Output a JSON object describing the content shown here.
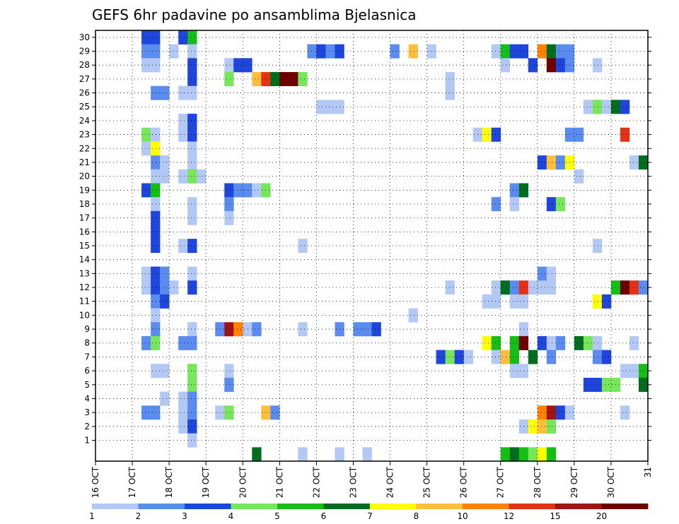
{
  "chart_data": {
    "type": "heatmap",
    "title": "GEFS 6hr padavine po ansamblima Bjelasnica",
    "xlabel": "",
    "ylabel": "",
    "x_ticks": [
      "16 OCT",
      "17 OCT",
      "18 OCT",
      "19 OCT",
      "20 OCT",
      "21 OCT",
      "22 OCT",
      "23 OCT",
      "24 OCT",
      "25 OCT",
      "26 OCT",
      "27 OCT",
      "28 OCT",
      "29 OCT",
      "30 OCT",
      "31"
    ],
    "x_range_days": [
      16,
      31
    ],
    "time_step_hours": 6,
    "y_ticks": [
      1,
      2,
      3,
      4,
      5,
      6,
      7,
      8,
      9,
      10,
      11,
      12,
      13,
      14,
      15,
      16,
      17,
      18,
      19,
      20,
      21,
      22,
      23,
      24,
      25,
      26,
      27,
      28,
      29,
      30
    ],
    "y_range": [
      0,
      30
    ],
    "grid": "dotted",
    "colorbar": {
      "labels": [
        "1",
        "2",
        "3",
        "4",
        "5",
        "6",
        "7",
        "8",
        "10",
        "12",
        "15",
        "20"
      ],
      "colors": [
        "#b4c8f5",
        "#5a8cf0",
        "#1e46dc",
        "#78e65a",
        "#14be14",
        "#006e1e",
        "#ffff00",
        "#ffbe3c",
        "#ff8200",
        "#e63214",
        "#a01414",
        "#6e0000"
      ]
    },
    "cells_note": "Each cell: [start day (day-of-month, quarter-day steps), member, color class 1-12]",
    "cells": [
      [
        17.25,
        30,
        3
      ],
      [
        17.5,
        30,
        3
      ],
      [
        18.25,
        30,
        3
      ],
      [
        18.5,
        30,
        5
      ],
      [
        17.25,
        29,
        2
      ],
      [
        17.5,
        29,
        2
      ],
      [
        18.0,
        29,
        1
      ],
      [
        18.5,
        29,
        1
      ],
      [
        21.75,
        29,
        2
      ],
      [
        22.0,
        29,
        3
      ],
      [
        22.25,
        29,
        2
      ],
      [
        22.5,
        29,
        3
      ],
      [
        24.0,
        29,
        2
      ],
      [
        24.5,
        29,
        8
      ],
      [
        25.0,
        29,
        1
      ],
      [
        26.75,
        29,
        1
      ],
      [
        27.0,
        29,
        5
      ],
      [
        27.25,
        29,
        3
      ],
      [
        27.5,
        29,
        3
      ],
      [
        28.0,
        29,
        9
      ],
      [
        28.25,
        29,
        6
      ],
      [
        28.5,
        29,
        2
      ],
      [
        28.75,
        29,
        2
      ],
      [
        17.25,
        28,
        1
      ],
      [
        17.5,
        28,
        1
      ],
      [
        18.5,
        28,
        3
      ],
      [
        19.5,
        28,
        1
      ],
      [
        19.75,
        28,
        3
      ],
      [
        20.0,
        28,
        3
      ],
      [
        27.0,
        28,
        1
      ],
      [
        27.75,
        28,
        3
      ],
      [
        28.25,
        28,
        12
      ],
      [
        28.5,
        28,
        3
      ],
      [
        28.75,
        28,
        2
      ],
      [
        29.5,
        28,
        1
      ],
      [
        18.5,
        27,
        3
      ],
      [
        19.5,
        27,
        4
      ],
      [
        20.25,
        27,
        8
      ],
      [
        20.5,
        27,
        10
      ],
      [
        20.75,
        27,
        6
      ],
      [
        21.0,
        27,
        12
      ],
      [
        21.25,
        27,
        12
      ],
      [
        21.5,
        27,
        4
      ],
      [
        25.5,
        27,
        1
      ],
      [
        17.5,
        26,
        2
      ],
      [
        17.75,
        26,
        2
      ],
      [
        18.25,
        26,
        1
      ],
      [
        18.5,
        26,
        1
      ],
      [
        25.5,
        26,
        1
      ],
      [
        22.0,
        25,
        1
      ],
      [
        22.25,
        25,
        1
      ],
      [
        22.5,
        25,
        1
      ],
      [
        29.25,
        25,
        1
      ],
      [
        29.5,
        25,
        4
      ],
      [
        29.75,
        25,
        1
      ],
      [
        30.0,
        25,
        6
      ],
      [
        30.25,
        25,
        3
      ],
      [
        18.25,
        24,
        1
      ],
      [
        18.5,
        24,
        3
      ],
      [
        17.25,
        23,
        4
      ],
      [
        17.5,
        23,
        1
      ],
      [
        18.25,
        23,
        1
      ],
      [
        18.5,
        23,
        3
      ],
      [
        26.25,
        23,
        1
      ],
      [
        26.5,
        23,
        7
      ],
      [
        26.75,
        23,
        3
      ],
      [
        28.75,
        23,
        2
      ],
      [
        29.0,
        23,
        2
      ],
      [
        30.25,
        23,
        10
      ],
      [
        17.25,
        22,
        1
      ],
      [
        17.5,
        22,
        7
      ],
      [
        18.5,
        22,
        1
      ],
      [
        17.5,
        21,
        2
      ],
      [
        17.75,
        21,
        1
      ],
      [
        18.5,
        21,
        1
      ],
      [
        28.0,
        21,
        3
      ],
      [
        28.25,
        21,
        8
      ],
      [
        28.5,
        21,
        2
      ],
      [
        28.75,
        21,
        7
      ],
      [
        30.5,
        21,
        1
      ],
      [
        30.75,
        21,
        6
      ],
      [
        17.5,
        20,
        1
      ],
      [
        17.75,
        20,
        1
      ],
      [
        18.25,
        20,
        1
      ],
      [
        18.5,
        20,
        4
      ],
      [
        18.75,
        20,
        1
      ],
      [
        29.0,
        20,
        1
      ],
      [
        17.25,
        19,
        3
      ],
      [
        17.5,
        19,
        5
      ],
      [
        19.5,
        19,
        3
      ],
      [
        19.75,
        19,
        2
      ],
      [
        20.0,
        19,
        2
      ],
      [
        20.25,
        19,
        1
      ],
      [
        20.5,
        19,
        4
      ],
      [
        27.25,
        19,
        2
      ],
      [
        27.5,
        19,
        6
      ],
      [
        17.5,
        18,
        1
      ],
      [
        18.5,
        18,
        1
      ],
      [
        19.5,
        18,
        2
      ],
      [
        26.75,
        18,
        2
      ],
      [
        27.25,
        18,
        1
      ],
      [
        28.25,
        18,
        3
      ],
      [
        28.5,
        18,
        4
      ],
      [
        17.5,
        17,
        3
      ],
      [
        18.5,
        17,
        1
      ],
      [
        19.5,
        17,
        1
      ],
      [
        17.5,
        16,
        3
      ],
      [
        17.5,
        15,
        3
      ],
      [
        18.25,
        15,
        1
      ],
      [
        18.5,
        15,
        3
      ],
      [
        21.5,
        15,
        1
      ],
      [
        29.5,
        15,
        1
      ],
      [
        17.25,
        13,
        1
      ],
      [
        17.5,
        13,
        3
      ],
      [
        17.75,
        13,
        2
      ],
      [
        18.5,
        13,
        1
      ],
      [
        28.0,
        13,
        2
      ],
      [
        28.25,
        13,
        1
      ],
      [
        17.25,
        12,
        1
      ],
      [
        17.5,
        12,
        3
      ],
      [
        17.75,
        12,
        2
      ],
      [
        18.0,
        12,
        1
      ],
      [
        18.5,
        12,
        3
      ],
      [
        25.5,
        12,
        1
      ],
      [
        26.75,
        12,
        1
      ],
      [
        27.0,
        12,
        6
      ],
      [
        27.25,
        12,
        2
      ],
      [
        27.5,
        12,
        10
      ],
      [
        27.75,
        12,
        1
      ],
      [
        28.0,
        12,
        1
      ],
      [
        28.25,
        12,
        1
      ],
      [
        30.0,
        12,
        5
      ],
      [
        30.25,
        12,
        12
      ],
      [
        30.5,
        12,
        10
      ],
      [
        30.75,
        12,
        2
      ],
      [
        17.5,
        11,
        2
      ],
      [
        17.75,
        11,
        3
      ],
      [
        26.5,
        11,
        1
      ],
      [
        26.75,
        11,
        1
      ],
      [
        27.25,
        11,
        1
      ],
      [
        27.5,
        11,
        1
      ],
      [
        29.5,
        11,
        7
      ],
      [
        29.75,
        11,
        3
      ],
      [
        17.5,
        10,
        1
      ],
      [
        24.5,
        10,
        1
      ],
      [
        17.5,
        9,
        2
      ],
      [
        18.5,
        9,
        1
      ],
      [
        19.25,
        9,
        2
      ],
      [
        19.5,
        9,
        11
      ],
      [
        19.75,
        9,
        9
      ],
      [
        20.0,
        9,
        1
      ],
      [
        20.25,
        9,
        2
      ],
      [
        21.5,
        9,
        1
      ],
      [
        22.5,
        9,
        2
      ],
      [
        23.0,
        9,
        2
      ],
      [
        23.25,
        9,
        2
      ],
      [
        23.5,
        9,
        3
      ],
      [
        27.5,
        9,
        1
      ],
      [
        17.25,
        8,
        2
      ],
      [
        17.5,
        8,
        4
      ],
      [
        18.25,
        8,
        2
      ],
      [
        18.5,
        8,
        2
      ],
      [
        26.5,
        8,
        7
      ],
      [
        26.75,
        8,
        5
      ],
      [
        27.25,
        8,
        5
      ],
      [
        27.5,
        8,
        12
      ],
      [
        28.0,
        8,
        3
      ],
      [
        28.25,
        8,
        1
      ],
      [
        28.5,
        8,
        2
      ],
      [
        29.0,
        8,
        6
      ],
      [
        29.25,
        8,
        4
      ],
      [
        29.5,
        8,
        1
      ],
      [
        30.5,
        8,
        1
      ],
      [
        25.25,
        7,
        3
      ],
      [
        25.5,
        7,
        4
      ],
      [
        25.75,
        7,
        3
      ],
      [
        26.0,
        7,
        1
      ],
      [
        26.75,
        7,
        1
      ],
      [
        27.0,
        7,
        8
      ],
      [
        27.25,
        7,
        5
      ],
      [
        27.75,
        7,
        6
      ],
      [
        28.25,
        7,
        2
      ],
      [
        29.5,
        7,
        2
      ],
      [
        29.75,
        7,
        3
      ],
      [
        17.5,
        6,
        1
      ],
      [
        17.75,
        6,
        1
      ],
      [
        18.5,
        6,
        4
      ],
      [
        19.5,
        6,
        1
      ],
      [
        27.25,
        6,
        1
      ],
      [
        27.5,
        6,
        1
      ],
      [
        30.25,
        6,
        1
      ],
      [
        30.5,
        6,
        1
      ],
      [
        30.75,
        6,
        5
      ],
      [
        18.5,
        5,
        4
      ],
      [
        19.5,
        5,
        2
      ],
      [
        29.25,
        5,
        3
      ],
      [
        29.5,
        5,
        3
      ],
      [
        29.75,
        5,
        4
      ],
      [
        30.0,
        5,
        4
      ],
      [
        30.75,
        5,
        6
      ],
      [
        17.75,
        4,
        1
      ],
      [
        18.25,
        4,
        1
      ],
      [
        18.5,
        4,
        2
      ],
      [
        17.25,
        3,
        2
      ],
      [
        17.5,
        3,
        2
      ],
      [
        18.25,
        3,
        1
      ],
      [
        18.5,
        3,
        2
      ],
      [
        19.25,
        3,
        1
      ],
      [
        19.5,
        3,
        4
      ],
      [
        20.5,
        3,
        8
      ],
      [
        20.75,
        3,
        2
      ],
      [
        28.0,
        3,
        9
      ],
      [
        28.25,
        3,
        11
      ],
      [
        28.5,
        3,
        3
      ],
      [
        28.75,
        3,
        1
      ],
      [
        30.25,
        3,
        1
      ],
      [
        18.25,
        2,
        1
      ],
      [
        18.5,
        2,
        3
      ],
      [
        27.5,
        2,
        1
      ],
      [
        27.75,
        2,
        7
      ],
      [
        28.0,
        2,
        8
      ],
      [
        28.25,
        2,
        4
      ],
      [
        18.5,
        1,
        1
      ],
      [
        20.25,
        0,
        6
      ],
      [
        21.5,
        0,
        1
      ],
      [
        22.5,
        0,
        1
      ],
      [
        23.25,
        0,
        1
      ],
      [
        27.0,
        0,
        5
      ],
      [
        27.25,
        0,
        6
      ],
      [
        27.5,
        0,
        5
      ],
      [
        27.75,
        0,
        4
      ],
      [
        28.0,
        0,
        7
      ],
      [
        28.25,
        0,
        5
      ]
    ]
  }
}
